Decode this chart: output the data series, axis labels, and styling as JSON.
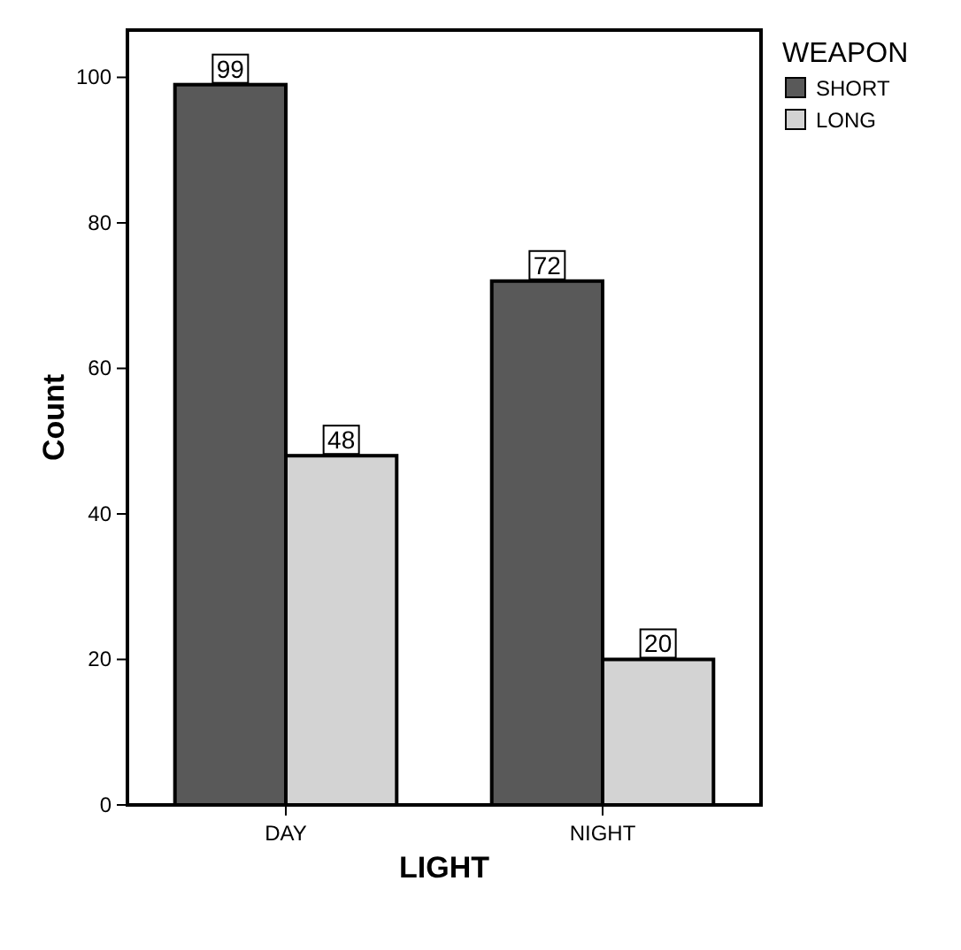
{
  "chart_data": {
    "type": "bar",
    "xlabel": "LIGHT",
    "ylabel": "Count",
    "legend_title": "WEAPON",
    "categories": [
      "DAY",
      "NIGHT"
    ],
    "series": [
      {
        "name": "SHORT",
        "color": "#595959",
        "values": [
          99,
          72
        ]
      },
      {
        "name": "LONG",
        "color": "#d3d3d3",
        "values": [
          48,
          20
        ]
      }
    ],
    "ylim": [
      0,
      106.5
    ],
    "yticks": [
      0,
      20,
      40,
      60,
      80,
      100
    ],
    "data_labels": true,
    "legend": "top right",
    "grid": false
  }
}
